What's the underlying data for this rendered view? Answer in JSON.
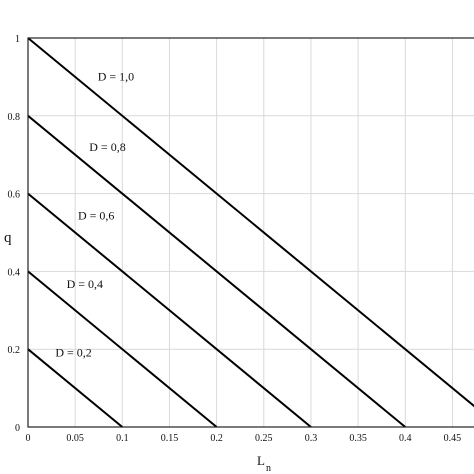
{
  "chart_data": {
    "type": "line",
    "title": "",
    "xlabel": "L",
    "xlabel_subscript": "n",
    "ylabel": "q",
    "xlim": [
      0,
      0.475
    ],
    "ylim": [
      0,
      1
    ],
    "grid": true,
    "x_ticks": [
      0,
      0.05,
      0.1,
      0.15,
      0.2,
      0.25,
      0.3,
      0.35,
      0.4,
      0.45
    ],
    "x_tick_labels": [
      "0",
      "0.05",
      "0.1",
      "0.15",
      "0.2",
      "0.25",
      "0.3",
      "0.35",
      "0.4",
      "0.45"
    ],
    "y_ticks": [
      0,
      0.2,
      0.4,
      0.6,
      0.8,
      1
    ],
    "y_tick_labels": [
      "0",
      "0.2",
      "0.4",
      "0.6",
      "0.8",
      "1"
    ],
    "series": [
      {
        "name": "D = 1,0",
        "x": [
          0,
          0.475
        ],
        "y": [
          1.0,
          0.05
        ]
      },
      {
        "name": "D = 0,8",
        "x": [
          0,
          0.4
        ],
        "y": [
          0.8,
          0.0
        ]
      },
      {
        "name": "D = 0,6",
        "x": [
          0,
          0.3
        ],
        "y": [
          0.6,
          0.0
        ]
      },
      {
        "name": "D = 0,4",
        "x": [
          0,
          0.2
        ],
        "y": [
          0.4,
          0.0
        ]
      },
      {
        "name": "D = 0,2",
        "x": [
          0,
          0.1
        ],
        "y": [
          0.2,
          0.0
        ]
      }
    ]
  }
}
